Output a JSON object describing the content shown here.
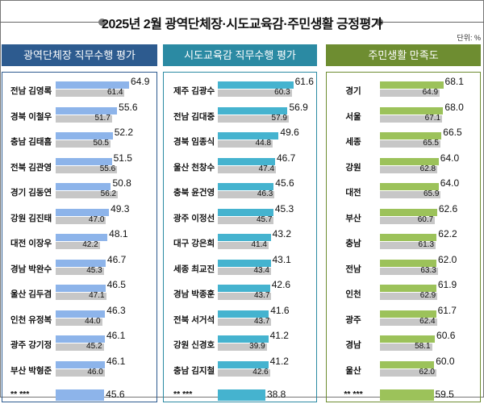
{
  "title": "2025년 2월 광역단체장·시도교육감·주민생활 긍정평가",
  "unit": "단위: %",
  "chart_data": [
    {
      "type": "bar",
      "title": "광역단체장 직무수행 평가",
      "color": "#8db4ea",
      "header_color": "#2d5b8f",
      "prev_color": "#c7c7c7",
      "categories": [
        "전남 김영록",
        "경북 이철우",
        "충남 김태흠",
        "전북 김관영",
        "경기 김동연",
        "강원 김진태",
        "대전 이장우",
        "경남 박완수",
        "울산 김두겸",
        "인천 유정복",
        "광주 강기정",
        "부산 박형준",
        "** ***"
      ],
      "series": [
        {
          "values": [
            64.9,
            55.6,
            52.2,
            51.5,
            50.8,
            49.3,
            48.1,
            46.7,
            46.5,
            46.3,
            46.1,
            46.1,
            45.6
          ]
        },
        {
          "values": [
            61.4,
            51.7,
            50.5,
            55.6,
            56.2,
            47.0,
            42.2,
            45.3,
            47.1,
            44.0,
            45.2,
            46.0,
            null
          ]
        }
      ]
    },
    {
      "type": "bar",
      "title": "시도교육감 직무수행 평가",
      "color": "#45b3cf",
      "header_color": "#2b8aa3",
      "prev_color": "#c7c7c7",
      "categories": [
        "제주 김광수",
        "전남 김대중",
        "경북 임종식",
        "울산 천창수",
        "충북 윤건영",
        "광주 이정선",
        "대구 강은희",
        "세종 최교진",
        "경남 박종훈",
        "전북 서거석",
        "강원 신경호",
        "충남 김지철",
        "** ***"
      ],
      "series": [
        {
          "values": [
            61.6,
            56.9,
            49.6,
            46.7,
            45.6,
            45.3,
            43.2,
            43.1,
            42.6,
            41.6,
            41.2,
            41.2,
            38.8
          ]
        },
        {
          "values": [
            60.3,
            57.9,
            44.8,
            47.4,
            46.3,
            45.7,
            41.4,
            43.4,
            43.7,
            43.7,
            39.9,
            42.6,
            null
          ]
        }
      ]
    },
    {
      "type": "bar",
      "title": "주민생활 만족도",
      "color": "#9cc25a",
      "header_color": "#6e8d31",
      "prev_color": "#c7c7c7",
      "categories": [
        "경기",
        "서울",
        "세종",
        "강원",
        "대전",
        "부산",
        "충남",
        "전남",
        "인천",
        "광주",
        "경남",
        "울산",
        "** ***"
      ],
      "series": [
        {
          "values": [
            68.1,
            68.0,
            66.5,
            64.0,
            64.0,
            62.6,
            62.2,
            62.0,
            61.9,
            61.7,
            60.6,
            60.0,
            59.5
          ]
        },
        {
          "values": [
            64.9,
            67.1,
            65.5,
            62.8,
            65.9,
            60.7,
            61.3,
            63.3,
            62.9,
            62.4,
            58.1,
            62.0,
            null
          ]
        }
      ]
    }
  ]
}
